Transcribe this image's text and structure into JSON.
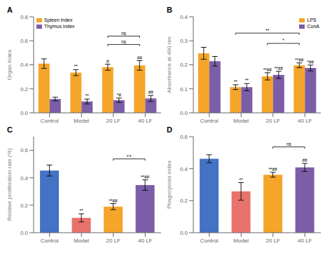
{
  "chart_data": [
    {
      "type": "bar",
      "title": "A",
      "ylabel": "Organ index",
      "ylim": [
        0,
        0.8
      ],
      "yticks": [
        {
          "value": 0.0,
          "label": "0.0"
        },
        0.2,
        0.4,
        0.6,
        0.8
      ],
      "categories": [
        "Control",
        "Model",
        "20 LF",
        "40 LF"
      ],
      "legend": "upper left",
      "series": [
        {
          "name": "Spleen index",
          "color": "#F5A52A",
          "values": [
            0.41,
            0.335,
            0.38,
            0.395
          ],
          "errors": [
            0.04,
            0.025,
            0.025,
            0.04
          ]
        },
        {
          "name": "Thymus index",
          "color": "#7B5EA7",
          "values": [
            0.115,
            0.095,
            0.105,
            0.12
          ],
          "errors": [
            0.015,
            0.02,
            0.018,
            0.025
          ]
        }
      ],
      "annotations": [
        {
          "text": "**",
          "category": "Model",
          "series": "Spleen index"
        },
        {
          "text": "#",
          "category": "20 LF",
          "series": "Spleen index"
        },
        {
          "text": "##",
          "category": "40 LF",
          "series": "Spleen index"
        },
        {
          "text": "**",
          "category": "Model",
          "series": "Thymus index"
        },
        {
          "text": "*#",
          "category": "20 LF",
          "series": "Thymus index"
        },
        {
          "text": "##",
          "category": "40 LF",
          "series": "Thymus index"
        }
      ],
      "brackets": [
        {
          "text": "ns",
          "from": "20 LF",
          "to": "40 LF",
          "series": "Spleen index",
          "y": 0.625
        },
        {
          "text": "ns",
          "from": "20 LF",
          "to": "40 LF",
          "series": "Spleen index",
          "y": 0.555
        }
      ]
    },
    {
      "type": "bar",
      "title": "B",
      "ylabel": "Absorbance at 490 nm",
      "ylim": [
        0,
        0.4
      ],
      "yticks": [
        {
          "value": 0.0,
          "label": "0.0"
        },
        0.1,
        0.2,
        0.3,
        0.4
      ],
      "categories": [
        "Control",
        "Model",
        "20 LF",
        "40 LF"
      ],
      "legend": "upper right",
      "series": [
        {
          "name": "LPS",
          "color": "#F5A52A",
          "values": [
            0.248,
            0.107,
            0.152,
            0.198
          ],
          "errors": [
            0.025,
            0.01,
            0.015,
            0.01
          ]
        },
        {
          "name": "ConA",
          "color": "#7B5EA7",
          "values": [
            0.215,
            0.107,
            0.158,
            0.187
          ],
          "errors": [
            0.02,
            0.015,
            0.015,
            0.012
          ]
        }
      ],
      "annotations": [
        {
          "text": "**",
          "category": "Model",
          "series": "LPS"
        },
        {
          "text": "**##",
          "category": "20 LF",
          "series": "LPS"
        },
        {
          "text": "**##",
          "category": "40 LF",
          "series": "LPS"
        },
        {
          "text": "**",
          "category": "Model",
          "series": "ConA"
        },
        {
          "text": "**##",
          "category": "20 LF",
          "series": "ConA"
        },
        {
          "text": "*##",
          "category": "40 LF",
          "series": "ConA"
        }
      ],
      "brackets": [
        {
          "text": "**",
          "from": "Model",
          "to": "40 LF",
          "series": "LPS",
          "y": 0.325
        },
        {
          "text": "*",
          "from": "20 LF",
          "to": "40 LF",
          "series": "LPS",
          "y": 0.282
        }
      ]
    },
    {
      "type": "bar",
      "title": "C",
      "ylabel": "Relative proliferation rate (%)",
      "ylim": [
        0,
        0.7
      ],
      "yticks": [
        {
          "value": 0.0,
          "label": "0.0"
        },
        0.2,
        0.4,
        0.6
      ],
      "categories": [
        "Control",
        "Model",
        "20 LF",
        "40 LF"
      ],
      "colors": [
        "#4472C4",
        "#E8736C",
        "#F5A52A",
        "#7B5EA7"
      ],
      "values": [
        0.453,
        0.108,
        0.19,
        0.347
      ],
      "errors": [
        0.04,
        0.03,
        0.022,
        0.038
      ],
      "annotations": [
        {
          "text": "**",
          "category": "Model"
        },
        {
          "text": "**##",
          "category": "20 LF"
        },
        {
          "text": "**##",
          "category": "40 LF"
        }
      ],
      "brackets": [
        {
          "text": "++",
          "from": "20 LF",
          "to": "40 LF",
          "y": 0.525
        }
      ]
    },
    {
      "type": "bar",
      "title": "D",
      "ylabel": "Phagocytosis index",
      "ylim": [
        0,
        0.6
      ],
      "yticks": [
        {
          "value": 0.0,
          "label": "0.0"
        },
        0.2,
        0.4,
        0.6
      ],
      "categories": [
        "Control",
        "Model",
        "20 LF",
        "40 LF"
      ],
      "colors": [
        "#4472C4",
        "#E8736C",
        "#F5A52A",
        "#7B5EA7"
      ],
      "values": [
        0.462,
        0.258,
        0.362,
        0.408
      ],
      "errors": [
        0.025,
        0.055,
        0.015,
        0.025
      ],
      "annotations": [
        {
          "text": "**",
          "category": "Model"
        },
        {
          "text": "**##",
          "category": "20 LF"
        },
        {
          "text": "##",
          "category": "40 LF"
        }
      ],
      "brackets": [
        {
          "text": "ns",
          "from": "20 LF",
          "to": "40 LF",
          "y": 0.525
        }
      ]
    }
  ]
}
